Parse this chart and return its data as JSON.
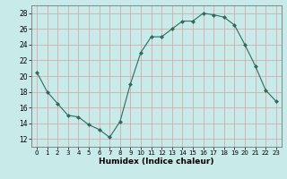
{
  "x": [
    0,
    1,
    2,
    3,
    4,
    5,
    6,
    7,
    8,
    9,
    10,
    11,
    12,
    13,
    14,
    15,
    16,
    17,
    18,
    19,
    20,
    21,
    22,
    23
  ],
  "y": [
    20.5,
    18.0,
    16.5,
    15.0,
    14.8,
    13.8,
    13.2,
    12.2,
    14.2,
    19.0,
    23.0,
    25.0,
    25.0,
    26.0,
    27.0,
    27.0,
    28.0,
    27.8,
    27.5,
    26.5,
    24.0,
    21.3,
    18.2,
    16.8
  ],
  "xlabel": "Humidex (Indice chaleur)",
  "xlim": [
    -0.5,
    23.5
  ],
  "ylim": [
    11,
    29
  ],
  "yticks": [
    12,
    14,
    16,
    18,
    20,
    22,
    24,
    26,
    28
  ],
  "xticks": [
    0,
    1,
    2,
    3,
    4,
    5,
    6,
    7,
    8,
    9,
    10,
    11,
    12,
    13,
    14,
    15,
    16,
    17,
    18,
    19,
    20,
    21,
    22,
    23
  ],
  "line_color": "#2e6b5e",
  "marker": "D",
  "marker_size": 2.0,
  "bg_color": "#c8eae8",
  "grid_color": "#b0d0cc",
  "axes_bg": "#c8eae8"
}
